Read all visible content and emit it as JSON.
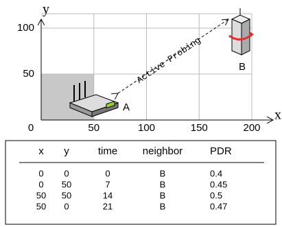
{
  "diagram": {
    "x_axis_label": "x",
    "y_axis_label": "y",
    "xticks": [
      0,
      50,
      100,
      150,
      200
    ],
    "yticks": [
      50,
      100
    ],
    "nodes": [
      {
        "label": "A"
      },
      {
        "label": "B"
      }
    ],
    "annotation": "Active Probing"
  },
  "table": {
    "header": [
      "x",
      "y",
      "time",
      "neighbor",
      "PDR"
    ],
    "rows": [
      [
        0,
        0,
        0,
        "B",
        0.4
      ],
      [
        0,
        50,
        7,
        "B",
        0.45
      ],
      [
        50,
        50,
        14,
        "B",
        0.5
      ],
      [
        50,
        0,
        21,
        "B",
        0.47
      ]
    ]
  }
}
